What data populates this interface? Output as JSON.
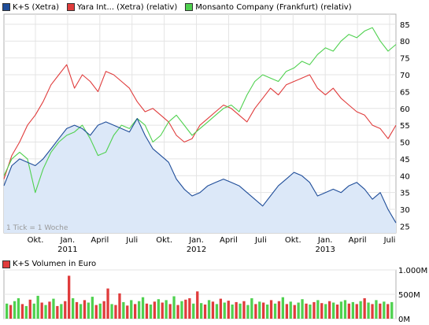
{
  "chart_data": [
    {
      "type": "line",
      "note": "1 Tick = 1 Woche",
      "x_ticks": [
        {
          "label": "Okt.",
          "year": ""
        },
        {
          "label": "Jan.",
          "year": "2011"
        },
        {
          "label": "April",
          "year": ""
        },
        {
          "label": "Juli",
          "year": ""
        },
        {
          "label": "Okt.",
          "year": ""
        },
        {
          "label": "Jan.",
          "year": "2012"
        },
        {
          "label": "April",
          "year": ""
        },
        {
          "label": "Juli",
          "year": ""
        },
        {
          "label": "Okt.",
          "year": ""
        },
        {
          "label": "Jan.",
          "year": "2013"
        },
        {
          "label": "April",
          "year": ""
        },
        {
          "label": "Juli",
          "year": ""
        }
      ],
      "x_range": [
        0,
        50
      ],
      "ylim": [
        23,
        88
      ],
      "y_ticks": [
        25,
        30,
        35,
        40,
        45,
        50,
        55,
        60,
        65,
        70,
        75,
        80,
        85
      ],
      "grid": true,
      "legend_position": "top-left",
      "series": [
        {
          "name": "K+S (Xetra)",
          "color": "#1f4d99",
          "fill": "#dce8f8",
          "area": true,
          "x": [
            0,
            1,
            2,
            3,
            4,
            5,
            6,
            7,
            8,
            9,
            10,
            11,
            12,
            13,
            14,
            15,
            16,
            17,
            18,
            19,
            20,
            21,
            22,
            23,
            24,
            25,
            26,
            27,
            28,
            29,
            30,
            31,
            32,
            33,
            34,
            35,
            36,
            37,
            38,
            39,
            40,
            41,
            42,
            43,
            44,
            45,
            46,
            47,
            48,
            49,
            50
          ],
          "values": [
            37,
            43,
            45,
            44,
            43,
            45,
            48,
            51,
            54,
            55,
            54,
            52,
            55,
            56,
            55,
            54,
            53,
            57,
            52,
            48,
            46,
            44,
            39,
            36,
            34,
            35,
            37,
            38,
            39,
            38,
            37,
            35,
            33,
            31,
            34,
            37,
            39,
            41,
            40,
            38,
            34,
            35,
            36,
            35,
            37,
            38,
            36,
            33,
            35,
            30,
            26
          ]
        },
        {
          "name": "Yara Int... (Xetra) (relativ)",
          "color": "#e03c3c",
          "x": [
            0,
            1,
            2,
            3,
            4,
            5,
            6,
            7,
            8,
            9,
            10,
            11,
            12,
            13,
            14,
            15,
            16,
            17,
            18,
            19,
            20,
            21,
            22,
            23,
            24,
            25,
            26,
            27,
            28,
            29,
            30,
            31,
            32,
            33,
            34,
            35,
            36,
            37,
            38,
            39,
            40,
            41,
            42,
            43,
            44,
            45,
            46,
            47,
            48,
            49,
            50
          ],
          "values": [
            39,
            46,
            50,
            55,
            58,
            62,
            67,
            70,
            73,
            66,
            70,
            68,
            65,
            71,
            70,
            68,
            66,
            62,
            59,
            60,
            58,
            56,
            52,
            50,
            51,
            55,
            57,
            59,
            61,
            60,
            58,
            56,
            60,
            63,
            66,
            64,
            67,
            68,
            69,
            70,
            66,
            64,
            66,
            63,
            61,
            59,
            58,
            55,
            54,
            51,
            55
          ]
        },
        {
          "name": "Monsanto Company (Frankfurt) (relativ)",
          "color": "#4fd14f",
          "x": [
            0,
            1,
            2,
            3,
            4,
            5,
            6,
            7,
            8,
            9,
            10,
            11,
            12,
            13,
            14,
            15,
            16,
            17,
            18,
            19,
            20,
            21,
            22,
            23,
            24,
            25,
            26,
            27,
            28,
            29,
            30,
            31,
            32,
            33,
            34,
            35,
            36,
            37,
            38,
            39,
            40,
            41,
            42,
            43,
            44,
            45,
            46,
            47,
            48,
            49,
            50
          ],
          "values": [
            40,
            45,
            47,
            45,
            35,
            42,
            47,
            50,
            52,
            53,
            55,
            51,
            46,
            47,
            52,
            55,
            54,
            57,
            55,
            50,
            52,
            56,
            58,
            55,
            52,
            54,
            56,
            58,
            60,
            61,
            59,
            64,
            68,
            70,
            69,
            68,
            71,
            72,
            74,
            73,
            76,
            78,
            77,
            80,
            82,
            81,
            83,
            84,
            80,
            77,
            79
          ]
        }
      ]
    },
    {
      "type": "bar",
      "name": "K+S Volumen in Euro",
      "color_up": "#4fd14f",
      "color_down": "#e03c3c",
      "ylim": [
        0,
        1000
      ],
      "y_ticks": [
        {
          "value": 0,
          "label": "0M"
        },
        {
          "value": 500,
          "label": "500M"
        },
        {
          "value": 1000,
          "label": "1.000M"
        }
      ],
      "values": [
        310,
        280,
        360,
        420,
        300,
        260,
        390,
        310,
        470,
        330,
        280,
        350,
        410,
        260,
        300,
        360,
        880,
        420,
        340,
        300,
        380,
        330,
        450,
        280,
        310,
        360,
        620,
        300,
        280,
        520,
        340,
        270,
        380,
        300,
        360,
        440,
        310,
        290,
        350,
        400,
        330,
        380,
        300,
        460,
        280,
        360,
        390,
        420,
        310,
        560,
        320,
        290,
        380,
        350,
        300,
        410,
        330,
        370,
        290,
        340,
        310,
        360,
        280,
        420,
        300,
        350,
        330,
        290,
        380,
        310,
        360,
        440,
        300,
        350,
        280,
        330,
        400,
        310,
        290,
        340,
        380,
        320,
        300,
        360,
        330,
        290,
        350,
        380,
        310,
        340,
        300,
        360,
        420,
        330,
        300,
        380,
        310,
        350,
        300,
        340
      ],
      "directions": [
        "u",
        "d",
        "u",
        "u",
        "d",
        "u",
        "d",
        "u",
        "u",
        "d",
        "u",
        "d",
        "u",
        "d",
        "u",
        "d",
        "d",
        "u",
        "d",
        "u",
        "d",
        "u",
        "u",
        "d",
        "u",
        "d",
        "d",
        "u",
        "d",
        "d",
        "u",
        "d",
        "u",
        "d",
        "u",
        "u",
        "d",
        "u",
        "d",
        "u",
        "d",
        "u",
        "d",
        "u",
        "d",
        "u",
        "d",
        "d",
        "u",
        "d",
        "u",
        "d",
        "u",
        "d",
        "u",
        "d",
        "u",
        "d",
        "u",
        "d",
        "u",
        "d",
        "u",
        "u",
        "d",
        "u",
        "d",
        "u",
        "d",
        "u",
        "d",
        "u",
        "d",
        "u",
        "d",
        "u",
        "u",
        "d",
        "u",
        "d",
        "u",
        "d",
        "u",
        "d",
        "u",
        "d",
        "u",
        "u",
        "d",
        "u",
        "d",
        "u",
        "d",
        "u",
        "d",
        "u",
        "d",
        "u",
        "d",
        "u"
      ]
    }
  ]
}
